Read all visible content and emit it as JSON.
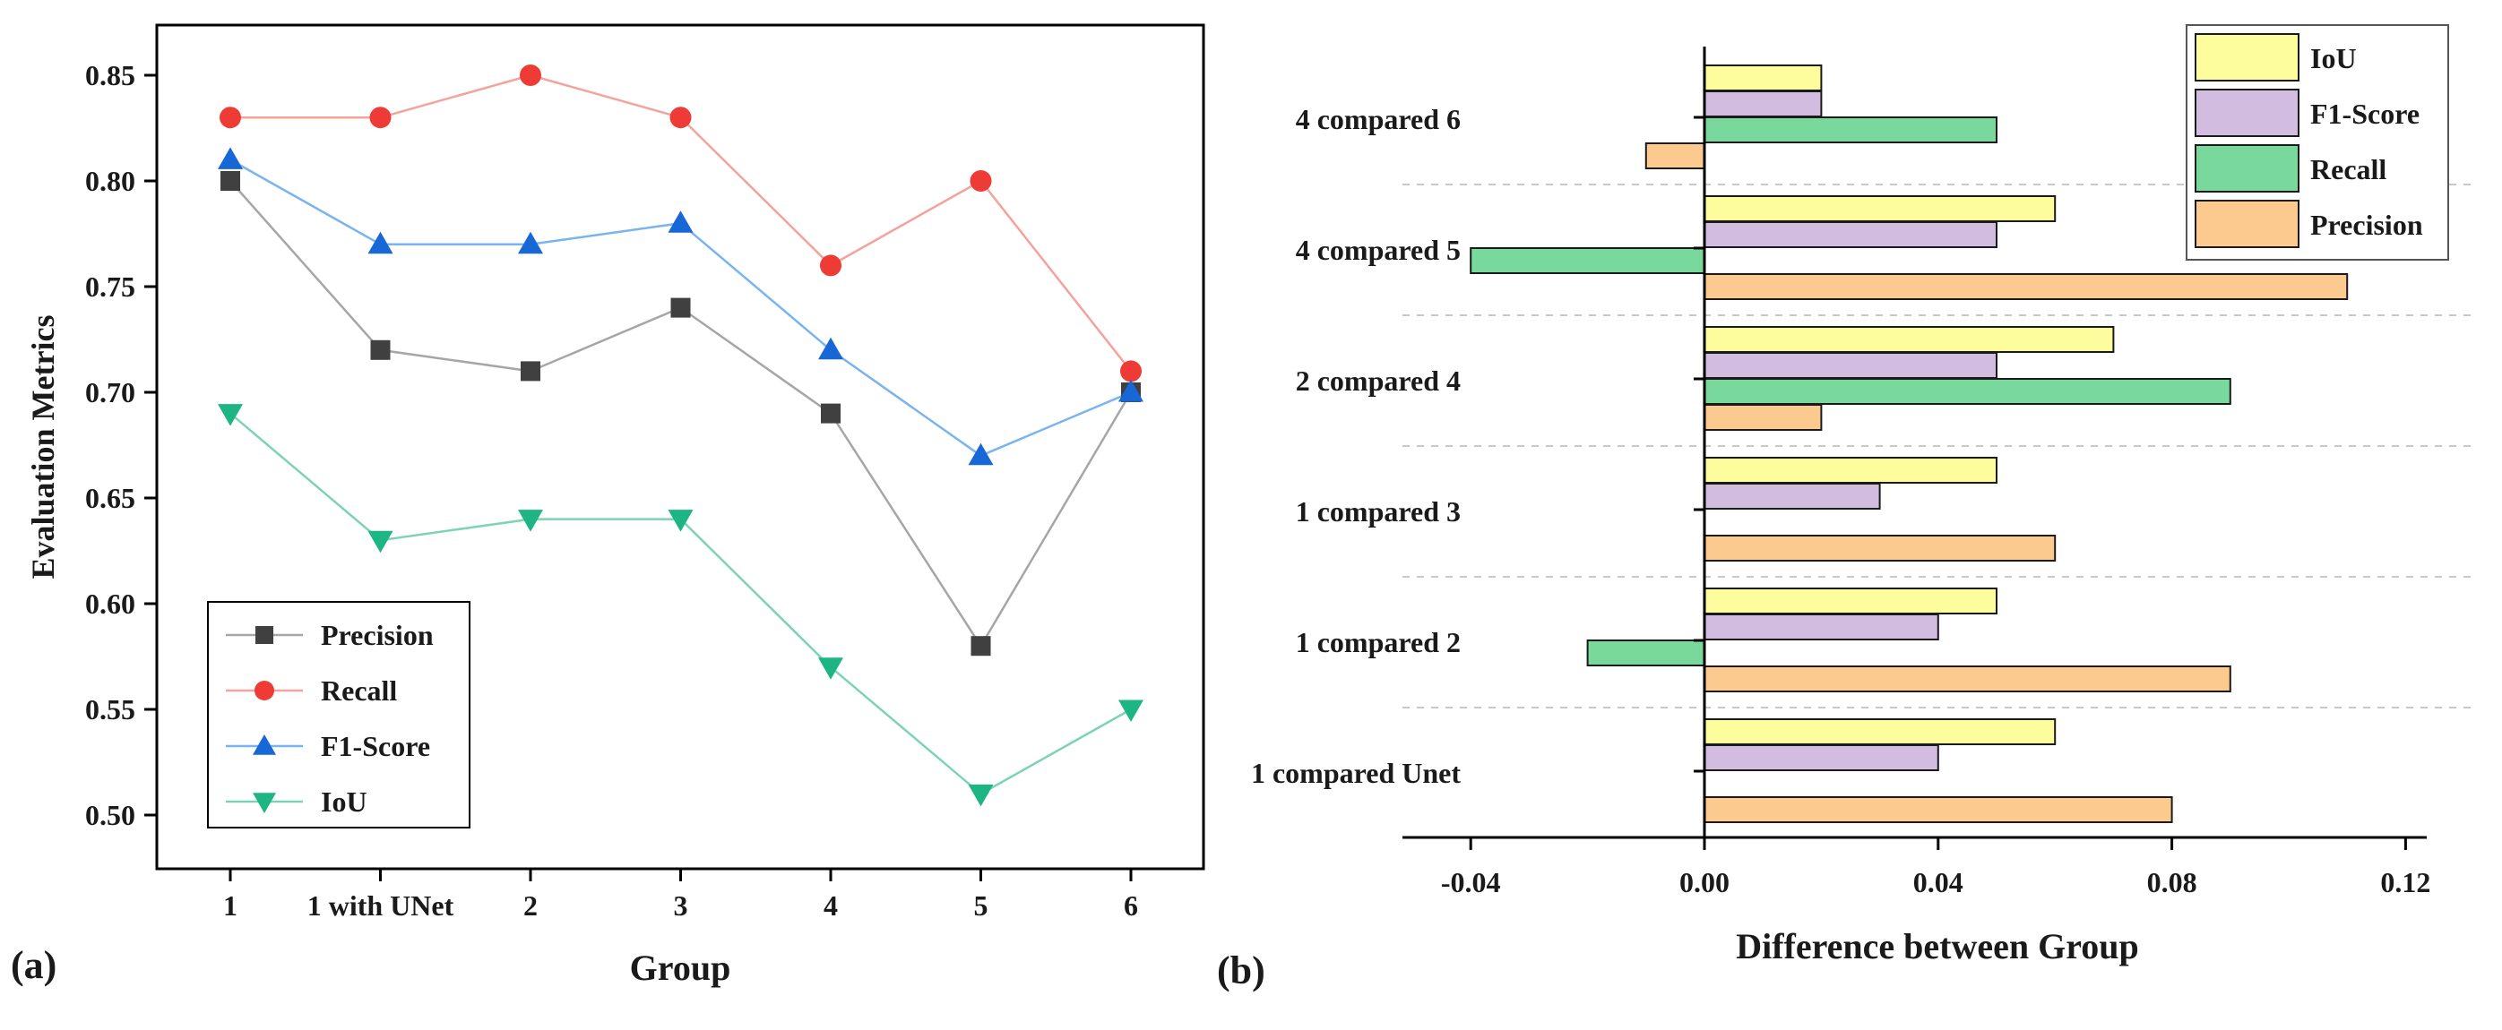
{
  "chart_data": [
    {
      "type": "line",
      "panel_label": "(a)",
      "xlabel": "Group",
      "ylabel": "Evaluation Metrics",
      "categories": [
        "1",
        "1 with UNet",
        "2",
        "3",
        "4",
        "5",
        "6"
      ],
      "ylim": [
        0.48,
        0.87
      ],
      "yticks": [
        0.5,
        0.55,
        0.6,
        0.65,
        0.7,
        0.75,
        0.8,
        0.85
      ],
      "ytick_labels": [
        "0.50",
        "0.55",
        "0.60",
        "0.65",
        "0.70",
        "0.75",
        "0.80",
        "0.85"
      ],
      "legend_position": "bottom-left",
      "series": [
        {
          "name": "Precision",
          "marker": "square",
          "line_color": "#a6a6a6",
          "marker_color": "#404040",
          "values": [
            0.8,
            0.72,
            0.71,
            0.74,
            0.69,
            0.58,
            0.7
          ]
        },
        {
          "name": "Recall",
          "marker": "circle",
          "line_color": "#f4a29c",
          "marker_color": "#ef3b36",
          "values": [
            0.83,
            0.83,
            0.85,
            0.83,
            0.76,
            0.8,
            0.71
          ]
        },
        {
          "name": "F1-Score",
          "marker": "triangle-up",
          "line_color": "#79b4ef",
          "marker_color": "#1767d6",
          "values": [
            0.81,
            0.77,
            0.77,
            0.78,
            0.72,
            0.67,
            0.7
          ]
        },
        {
          "name": "IoU",
          "marker": "triangle-down",
          "line_color": "#7dd3b4",
          "marker_color": "#1db584",
          "values": [
            0.69,
            0.63,
            0.64,
            0.64,
            0.57,
            0.51,
            0.55
          ]
        }
      ]
    },
    {
      "type": "bar",
      "orientation": "horizontal",
      "panel_label": "(b)",
      "xlabel": "Difference between Group",
      "ylabel": "",
      "xlim": [
        -0.052,
        0.13
      ],
      "xticks": [
        -0.04,
        0.0,
        0.04,
        0.08,
        0.12
      ],
      "xtick_labels": [
        "-0.04",
        "0.00",
        "0.04",
        "0.08",
        "0.12"
      ],
      "categories": [
        "1 compared Unet",
        "1 compared 2",
        "1 compared 3",
        "2 compared 4",
        "4 compared 5",
        "4 compared 6"
      ],
      "legend_position": "top-right",
      "series": [
        {
          "name": "IoU",
          "color": "#fdfd9e",
          "values": [
            0.06,
            0.05,
            0.05,
            0.07,
            0.06,
            0.02
          ]
        },
        {
          "name": "F1-Score",
          "color": "#d2bde1",
          "values": [
            0.04,
            0.04,
            0.03,
            0.05,
            0.05,
            0.02
          ]
        },
        {
          "name": "Recall",
          "color": "#79d89b",
          "values": [
            0.0,
            -0.02,
            0.0,
            0.09,
            -0.04,
            0.05
          ]
        },
        {
          "name": "Precision",
          "color": "#fcca8e",
          "values": [
            0.08,
            0.09,
            0.06,
            0.02,
            0.11,
            -0.01
          ]
        }
      ]
    }
  ]
}
